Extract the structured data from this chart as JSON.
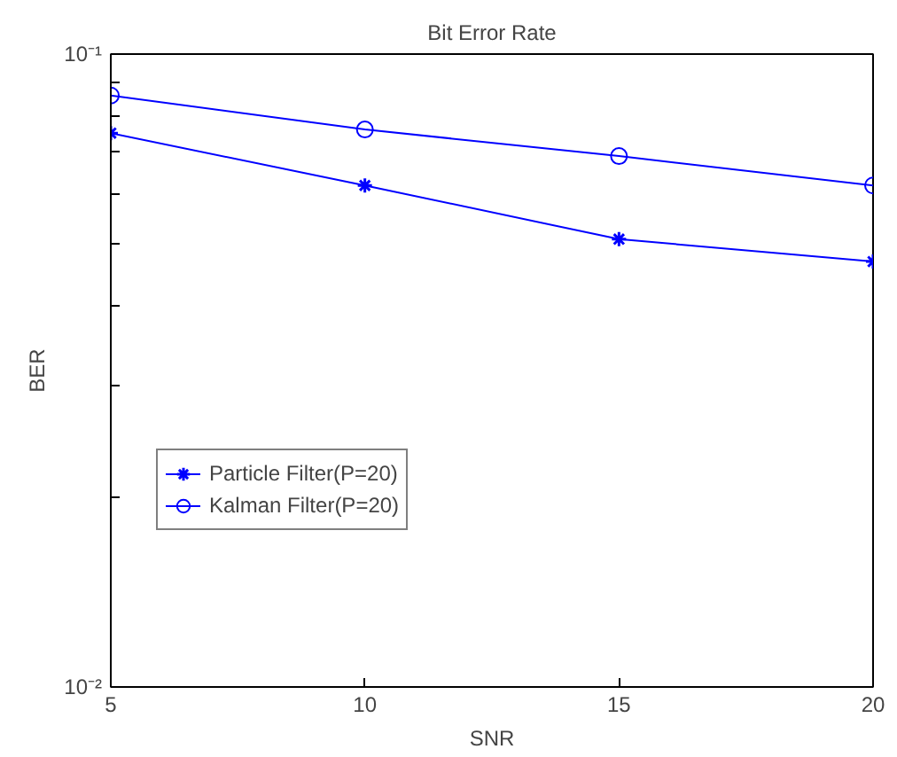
{
  "chart_data": {
    "type": "line",
    "title": "Bit Error Rate",
    "xlabel": "SNR",
    "ylabel": "BER",
    "x": [
      5,
      10,
      15,
      20
    ],
    "series": [
      {
        "name": "Particle Filter(P=20)",
        "color": "#0000ff",
        "marker": "cross",
        "values": [
          0.075,
          0.062,
          0.051,
          0.047
        ]
      },
      {
        "name": "Kalman Filter(P=20)",
        "color": "#0000ff",
        "marker": "circle",
        "values": [
          0.086,
          0.076,
          0.069,
          0.062
        ]
      }
    ],
    "xlim": [
      5,
      20
    ],
    "xticks": [
      5,
      10,
      15,
      20
    ],
    "ylim": [
      0.01,
      0.1
    ],
    "yticks": [
      {
        "value": 0.01,
        "label": "10⁻²"
      },
      {
        "value": 0.02,
        "label": null
      },
      {
        "value": 0.03,
        "label": null
      },
      {
        "value": 0.04,
        "label": null
      },
      {
        "value": 0.05,
        "label": null
      },
      {
        "value": 0.06,
        "label": null
      },
      {
        "value": 0.07,
        "label": null
      },
      {
        "value": 0.08,
        "label": null
      },
      {
        "value": 0.09,
        "label": null
      },
      {
        "value": 0.1,
        "label": "10⁻¹"
      }
    ],
    "log": "y",
    "grid": false,
    "legend": "bottom left",
    "line_style": "solid"
  }
}
